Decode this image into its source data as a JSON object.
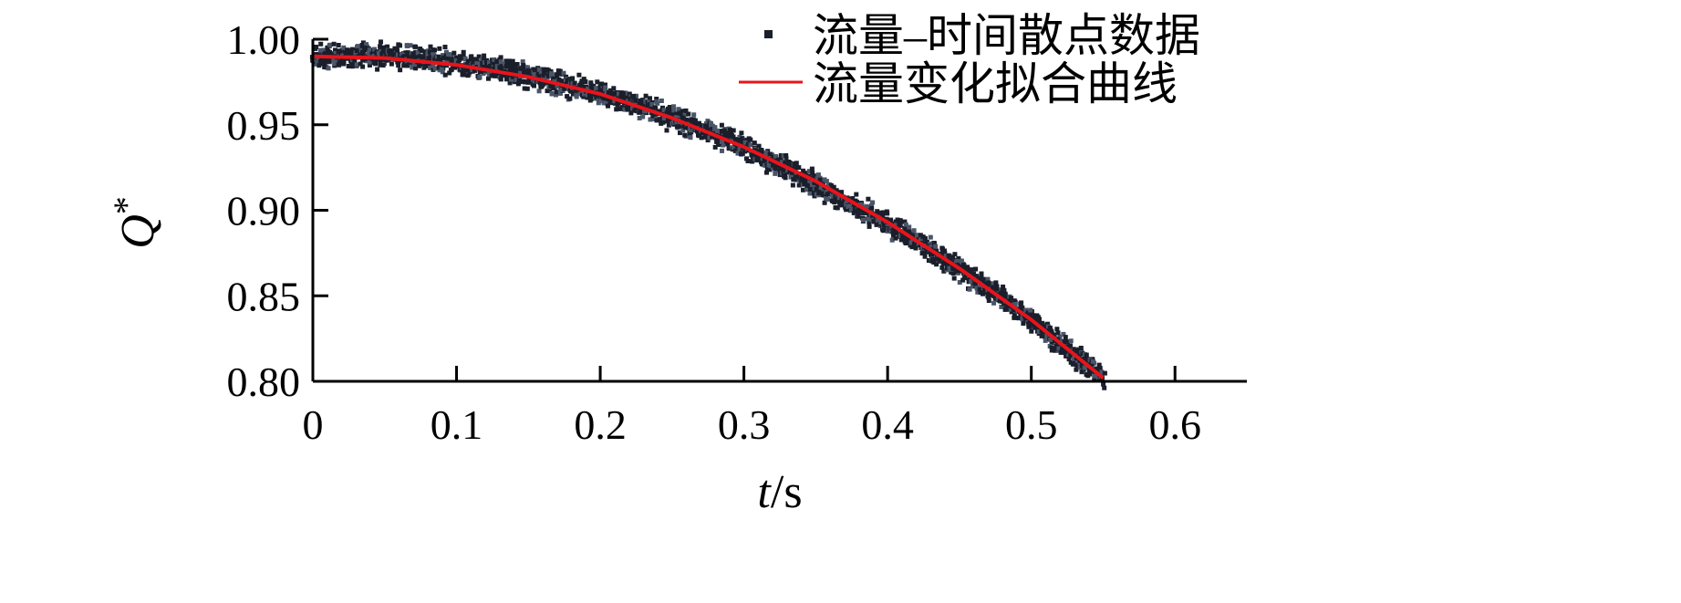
{
  "chart_data": {
    "type": "scatter",
    "title": "",
    "xlabel_var": "t",
    "xlabel_unit": "/s",
    "ylabel_var": "Q",
    "ylabel_sup": "*",
    "xlim": [
      0,
      0.65
    ],
    "ylim": [
      0.8,
      1.0
    ],
    "xticks": [
      0,
      0.1,
      0.2,
      0.3,
      0.4,
      0.5,
      0.6
    ],
    "xtick_labels": [
      "0",
      "0.1",
      "0.2",
      "0.3",
      "0.4",
      "0.5",
      "0.6"
    ],
    "yticks": [
      0.8,
      0.85,
      0.9,
      0.95,
      1.0
    ],
    "ytick_labels": [
      "0.80",
      "0.85",
      "0.90",
      "0.95",
      "1.00"
    ],
    "grid": false,
    "legend_position": "top-right",
    "series": [
      {
        "name": "流量–时间散点数据",
        "kind": "scatter",
        "color": "#1a1f2b",
        "x": [
          0.0,
          0.02,
          0.04,
          0.06,
          0.08,
          0.1,
          0.12,
          0.14,
          0.16,
          0.18,
          0.2,
          0.22,
          0.24,
          0.26,
          0.28,
          0.3,
          0.32,
          0.34,
          0.36,
          0.38,
          0.4,
          0.42,
          0.44,
          0.46,
          0.48,
          0.5,
          0.52,
          0.54,
          0.55
        ],
        "y": [
          0.99,
          0.99,
          0.991,
          0.99,
          0.988,
          0.987,
          0.984,
          0.981,
          0.977,
          0.972,
          0.968,
          0.963,
          0.958,
          0.951,
          0.944,
          0.937,
          0.929,
          0.92,
          0.91,
          0.901,
          0.892,
          0.882,
          0.871,
          0.86,
          0.848,
          0.836,
          0.822,
          0.809,
          0.804
        ]
      },
      {
        "name": "流量变化拟合曲线",
        "kind": "line",
        "color": "#e8141b",
        "x": [
          0.0,
          0.05,
          0.1,
          0.15,
          0.2,
          0.25,
          0.3,
          0.35,
          0.4,
          0.45,
          0.5,
          0.55
        ],
        "y": [
          0.99,
          0.989,
          0.985,
          0.978,
          0.968,
          0.954,
          0.937,
          0.917,
          0.893,
          0.866,
          0.836,
          0.802
        ]
      }
    ]
  }
}
